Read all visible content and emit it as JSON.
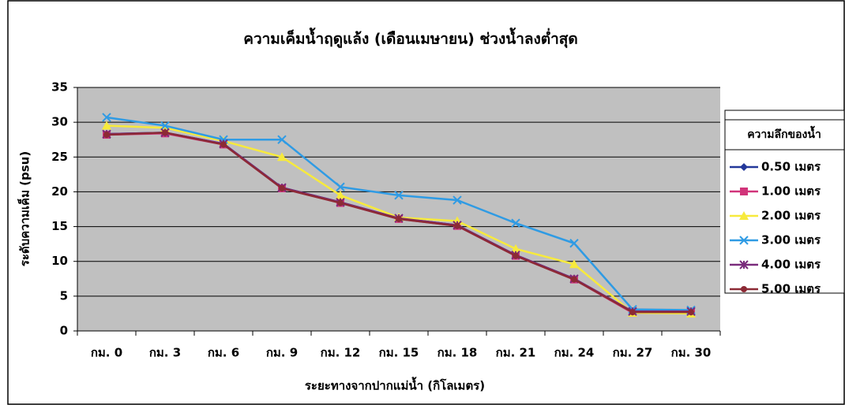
{
  "chart_data": {
    "type": "line",
    "title": "ความเค็มน้ำฤดูแล้ง (เดือนเมษายน) ช่วงน้ำลงต่ำสุด",
    "x_label": "ระยะทางจากปากแม่น้ำ (กิโลเมตร)",
    "y_label": "ระดับความเค็ม (psu)",
    "legend_title": "ความลึกของน้ำ",
    "legend": "right",
    "grid": true,
    "categories": [
      "กม. 0",
      "กม. 3",
      "กม. 6",
      "กม. 9",
      "กม. 12",
      "กม. 15",
      "กม. 18",
      "กม. 21",
      "กม. 24",
      "กม. 27",
      "กม. 30"
    ],
    "ylim": [
      0,
      35
    ],
    "yticks": [
      0,
      5,
      10,
      15,
      20,
      25,
      30,
      35
    ],
    "series": [
      {
        "name": "0.50 เมตร",
        "color": "#23389a",
        "marker": "diamond",
        "values": [
          28.3,
          28.5,
          26.9,
          20.6,
          18.5,
          16.2,
          15.2,
          10.9,
          7.5,
          2.7,
          2.7
        ]
      },
      {
        "name": "1.00 เมตร",
        "color": "#d1347a",
        "marker": "square",
        "values": [
          28.2,
          28.4,
          26.8,
          20.5,
          18.4,
          16.1,
          15.1,
          10.8,
          7.4,
          2.6,
          2.6
        ]
      },
      {
        "name": "2.00 เมตร",
        "color": "#f7ea3c",
        "marker": "triangle",
        "values": [
          29.5,
          29.2,
          27.3,
          25.0,
          19.5,
          16.3,
          15.8,
          11.8,
          9.6,
          2.6,
          2.5
        ]
      },
      {
        "name": "3.00 เมตร",
        "color": "#2f9be4",
        "marker": "x",
        "values": [
          30.7,
          29.5,
          27.5,
          27.5,
          20.7,
          19.5,
          18.8,
          15.5,
          12.6,
          3.1,
          3.0
        ]
      },
      {
        "name": "4.00 เมตร",
        "color": "#7a2c7c",
        "marker": "star",
        "values": [
          28.3,
          28.5,
          26.9,
          20.6,
          18.5,
          16.2,
          15.2,
          10.9,
          7.5,
          2.8,
          2.8
        ]
      },
      {
        "name": "5.00 เมตร",
        "color": "#8c2a35",
        "marker": "circle",
        "values": [
          28.2,
          28.5,
          26.8,
          20.5,
          18.4,
          16.1,
          15.1,
          10.8,
          7.4,
          2.7,
          2.7
        ]
      }
    ]
  }
}
